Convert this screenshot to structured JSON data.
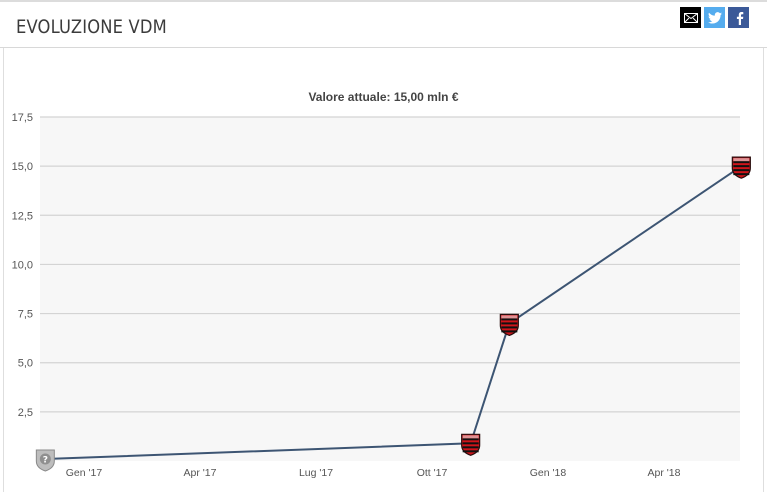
{
  "header": {
    "title": "EVOLUZIONE VDM",
    "share": [
      {
        "name": "mail-icon",
        "color": "#000000"
      },
      {
        "name": "twitter-icon",
        "color": "#55acee"
      },
      {
        "name": "facebook-icon",
        "color": "#3b5998"
      }
    ]
  },
  "chart_data": {
    "type": "line",
    "title": "Valore attuale: 15,00 mln €",
    "xlabel": "",
    "ylabel": "",
    "ylim": [
      0,
      17.5
    ],
    "yticks": [
      "2,5",
      "5,0",
      "7,5",
      "10,0",
      "12,5",
      "15,0",
      "17,5"
    ],
    "xticks": [
      "Gen '17",
      "Apr '17",
      "Lug '17",
      "Ott '17",
      "Gen '18",
      "Apr '18"
    ],
    "grid": true,
    "line_color": "#3d5573",
    "series": [
      {
        "points": [
          {
            "x": "2016-12",
            "y": 0.1,
            "marker": "unknown-club-icon"
          },
          {
            "x": "2017-11",
            "y": 0.9,
            "marker": "flamengo-crest-icon"
          },
          {
            "x": "2017-12",
            "y": 7.0,
            "marker": "flamengo-crest-icon"
          },
          {
            "x": "2018-06",
            "y": 15.0,
            "marker": "flamengo-crest-icon"
          }
        ]
      }
    ]
  }
}
